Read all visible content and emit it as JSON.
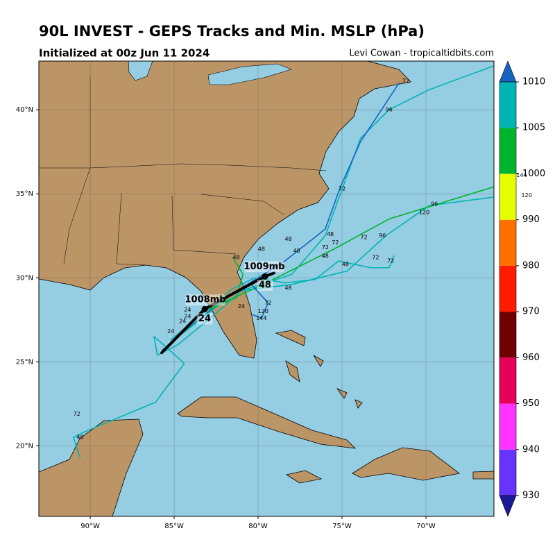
{
  "header": {
    "title": "90L INVEST - GEPS Tracks and Min. MSLP (hPa)",
    "subtitle": "Initialized at 00z Jun 11 2024",
    "credit": "Levi Cowan - tropicaltidbits.com"
  },
  "map": {
    "xlim": [
      -93.06,
      -65.95
    ],
    "ylim": [
      15.8,
      42.9
    ],
    "xticks": [
      {
        "value": -90,
        "label": "90°W"
      },
      {
        "value": -85,
        "label": "85°W"
      },
      {
        "value": -80,
        "label": "80°W"
      },
      {
        "value": -75,
        "label": "75°W"
      },
      {
        "value": -70,
        "label": "70°W"
      }
    ],
    "yticks": [
      {
        "value": 20,
        "label": "20°N"
      },
      {
        "value": 25,
        "label": "25°N"
      },
      {
        "value": 30,
        "label": "30°N"
      },
      {
        "value": 35,
        "label": "35°N"
      },
      {
        "value": 40,
        "label": "40°N"
      }
    ],
    "grid": true,
    "tracks": [
      {
        "color": "#00b4b4",
        "lon": [
          -85.5,
          -81.7,
          -78.0,
          -76.0,
          -73.9,
          -72.2,
          -69.8,
          -66.0
        ],
        "lat": [
          25.9,
          29.0,
          30.2,
          32.5,
          38.3,
          40.0,
          41.2,
          42.6
        ]
      },
      {
        "color": "#1565c0",
        "lon": [
          -85.7,
          -82.1,
          -78.4,
          -76.0,
          -75.1,
          -73.9,
          -71.6
        ],
        "lat": [
          25.7,
          28.7,
          31.0,
          32.9,
          35.4,
          38.1,
          41.6
        ]
      },
      {
        "color": "#00b4b4",
        "lon": [
          -85.5,
          -81.3,
          -78.0,
          -74.7,
          -72.4,
          -69.8,
          -66.0
        ],
        "lat": [
          25.9,
          29.2,
          29.6,
          30.4,
          32.5,
          34.3,
          34.8
        ]
      },
      {
        "color": "#00b42d",
        "lon": [
          -83.0,
          -79.7,
          -75.5,
          -72.2,
          -66.0
        ],
        "lat": [
          28.1,
          29.6,
          31.7,
          33.5,
          35.4
        ]
      },
      {
        "color": "#00b4b4",
        "lon": [
          -85.5,
          -84.4,
          -86.1,
          -90.4,
          -91.0,
          -90.6
        ],
        "lat": [
          25.9,
          24.9,
          22.6,
          20.8,
          20.5,
          19.3
        ]
      },
      {
        "color": "#00b42d",
        "lon": [
          -83.0,
          -81.3,
          -80.9,
          -81.5
        ],
        "lat": [
          28.1,
          28.8,
          30.2,
          31.2
        ]
      },
      {
        "color": "#1565c0",
        "lon": [
          -82.5,
          -80.4,
          -79.4,
          -79.8,
          -80.3
        ],
        "lat": [
          28.5,
          29.6,
          28.5,
          27.6,
          27.8
        ]
      },
      {
        "color": "#00b4b4",
        "lon": [
          -85.5,
          -86.2,
          -86.0,
          -84.8,
          -82.6,
          -80.8
        ],
        "lat": [
          25.9,
          26.5,
          25.4,
          26.0,
          27.8,
          29.4
        ]
      },
      {
        "color": "#00b4b4",
        "lon": [
          -85.2,
          -83.4,
          -81.6,
          -80.2,
          -78.4,
          -76.6,
          -75.2,
          -73.3,
          -72.2,
          -71.9
        ],
        "lat": [
          26.3,
          27.8,
          29.3,
          30.0,
          29.7,
          29.9,
          31.0,
          30.6,
          30.6,
          31.3
        ]
      },
      {
        "color": "#000000",
        "width": 4,
        "lon": [
          -85.74,
          -83.18,
          -81.12,
          -79.59,
          -79.05
        ],
        "lat": [
          25.54,
          28.14,
          29.26,
          30.08,
          30.29
        ]
      }
    ],
    "big_labels": [
      {
        "text": "1008mb",
        "lon": -83.14,
        "lat": 28.68
      },
      {
        "text": "24",
        "lon": -83.18,
        "lat": 27.56
      },
      {
        "text": "1009mb",
        "lon": -79.63,
        "lat": 30.66
      },
      {
        "text": "48",
        "lon": -79.59,
        "lat": 29.55
      }
    ],
    "small_labels": [
      {
        "text": "96",
        "lon": -72.2,
        "lat": 40.0
      },
      {
        "text": "72",
        "lon": -71.2,
        "lat": 41.7
      },
      {
        "text": "72",
        "lon": -75.0,
        "lat": 35.3
      },
      {
        "text": "96",
        "lon": -69.5,
        "lat": 34.4
      },
      {
        "text": "120",
        "lon": -70.1,
        "lat": 33.9
      },
      {
        "text": "48",
        "lon": -78.2,
        "lat": 32.3
      },
      {
        "text": "48",
        "lon": -75.7,
        "lat": 32.6
      },
      {
        "text": "72",
        "lon": -76.0,
        "lat": 31.8
      },
      {
        "text": "72",
        "lon": -75.4,
        "lat": 32.1
      },
      {
        "text": "72",
        "lon": -73.7,
        "lat": 32.4
      },
      {
        "text": "96",
        "lon": -72.6,
        "lat": 32.5
      },
      {
        "text": "48",
        "lon": -77.7,
        "lat": 31.6
      },
      {
        "text": "48",
        "lon": -76.0,
        "lat": 31.3
      },
      {
        "text": "48",
        "lon": -74.8,
        "lat": 30.8
      },
      {
        "text": "72",
        "lon": -73.0,
        "lat": 31.2
      },
      {
        "text": "72",
        "lon": -72.1,
        "lat": 31.0
      },
      {
        "text": "48",
        "lon": -81.3,
        "lat": 31.2
      },
      {
        "text": "48",
        "lon": -79.8,
        "lat": 31.7
      },
      {
        "text": "48",
        "lon": -78.2,
        "lat": 29.4
      },
      {
        "text": "72",
        "lon": -79.4,
        "lat": 28.5
      },
      {
        "text": "120",
        "lon": -79.7,
        "lat": 28.0
      },
      {
        "text": "144",
        "lon": -79.8,
        "lat": 27.6
      },
      {
        "text": "24",
        "lon": -81.0,
        "lat": 28.3
      },
      {
        "text": "24",
        "lon": -84.2,
        "lat": 28.1
      },
      {
        "text": "24",
        "lon": -84.2,
        "lat": 27.7
      },
      {
        "text": "24",
        "lon": -84.5,
        "lat": 27.4
      },
      {
        "text": "24",
        "lon": -85.2,
        "lat": 26.8
      },
      {
        "text": "72",
        "lon": -90.8,
        "lat": 21.9
      },
      {
        "text": "48",
        "lon": -90.6,
        "lat": 20.5
      },
      {
        "text": "144",
        "lon": -64.3,
        "lat": 36.1
      },
      {
        "text": "120",
        "lon": -64.0,
        "lat": 34.9
      }
    ]
  },
  "colorbar": {
    "boundaries": [
      930,
      940,
      950,
      960,
      970,
      980,
      990,
      1000,
      1005,
      1010
    ],
    "colors": [
      "#6633ff",
      "#ff33ff",
      "#e6005a",
      "#700000",
      "#ff1a00",
      "#ff7000",
      "#e6ff00",
      "#00b42d",
      "#00b4b4"
    ],
    "under_color": "#1a1a99",
    "over_color": "#1565c0"
  }
}
